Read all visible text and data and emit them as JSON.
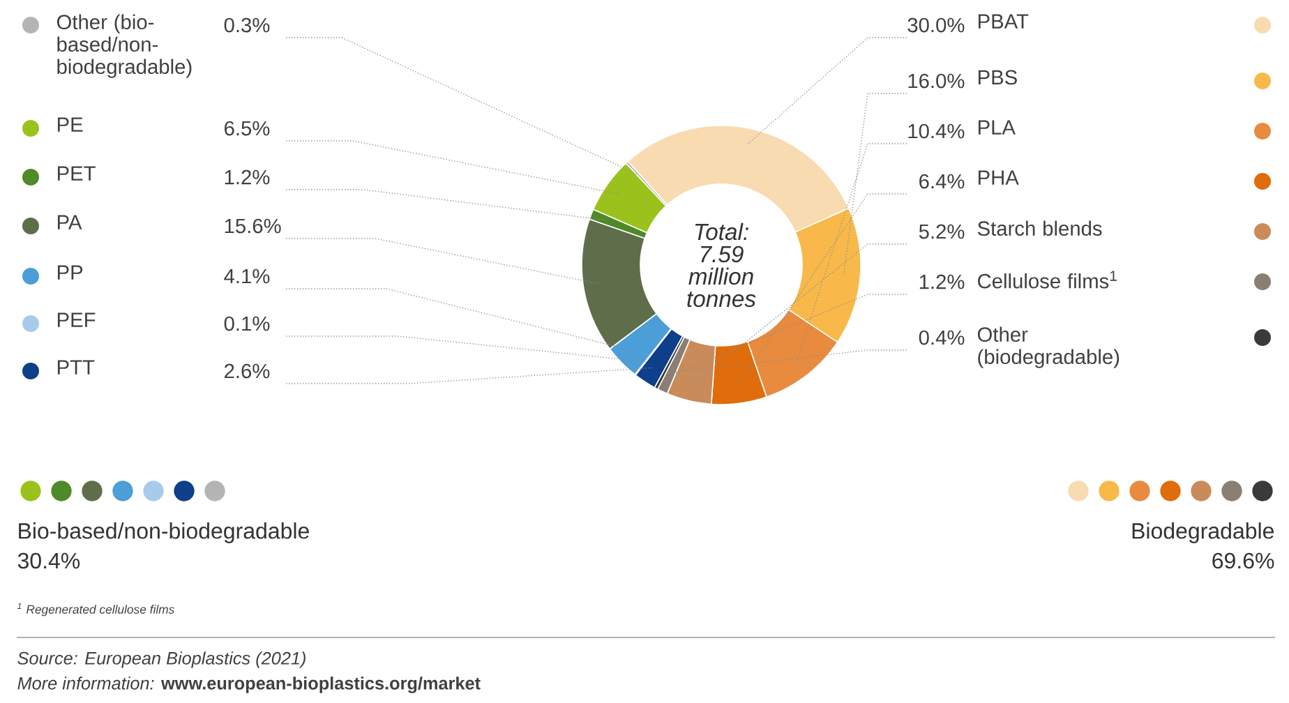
{
  "chart_data": {
    "type": "donut",
    "categories": [
      "PBAT",
      "PBS",
      "PLA",
      "PHA",
      "Starch blends",
      "Cellulose films$^{1}$",
      "Other (biodegradable)",
      "PTT",
      "PEF",
      "PP",
      "PA",
      "PET",
      "PE",
      "Other (bio-based/non-biodegradable)"
    ],
    "values": [
      30.0,
      16.0,
      10.4,
      6.4,
      5.2,
      1.2,
      0.4,
      2.6,
      0.1,
      4.1,
      15.6,
      1.2,
      6.5,
      0.3
    ],
    "value_labels": [
      "30.0%",
      "16.0%",
      "10.4%",
      "6.4%",
      "5.2%",
      "1.2%",
      "0.4%",
      "2.6%",
      "0.1%",
      "4.1%",
      "15.6%",
      "1.2%",
      "6.5%",
      "0.3%"
    ],
    "legend": "left",
    "colors": [
      "#f8dbb0",
      "#f8b94a",
      "#e88b3e",
      "#e06c0c",
      "#c98b5a",
      "#8b7e72",
      "#3a3a3a",
      "#0d3f8a",
      "#a9cbeb",
      "#4b9ed8",
      "#5e6e4a",
      "#4e8a28",
      "#9bc21c",
      "#b4b4b4"
    ],
    "annotations": [
      "*Total: 7.59 million tonnes*",
      "Bio-based/non-biodegradable",
      "30.4%",
      "Biodegradable",
      "69.6%",
      "$^{1}$ Regenerated cellulose films",
      "*Source: European Bioplastics (2021)*",
      "*More information:* **www.european-bioplastics.org/market**"
    ]
  }
}
